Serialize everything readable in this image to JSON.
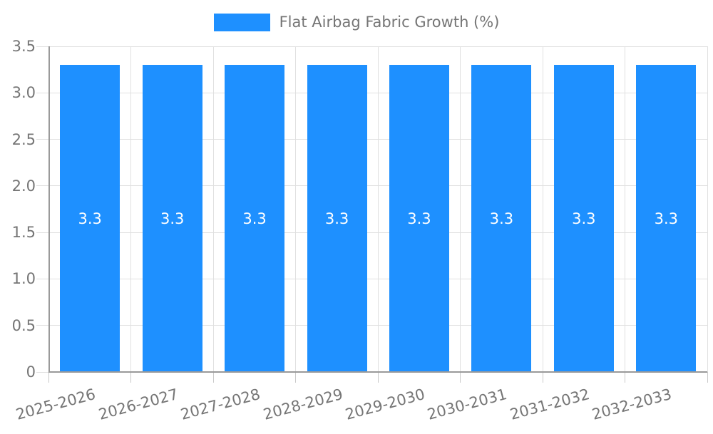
{
  "legend": {
    "label": "Flat Airbag Fabric Growth (%)"
  },
  "chart_data": {
    "type": "bar",
    "title": "",
    "series_name": "Flat Airbag Fabric Growth (%)",
    "categories": [
      "2025-2026",
      "2026-2027",
      "2027-2028",
      "2028-2029",
      "2029-2030",
      "2030-2031",
      "2031-2032",
      "2032-2033"
    ],
    "values": [
      3.3,
      3.3,
      3.3,
      3.3,
      3.3,
      3.3,
      3.3,
      3.3
    ],
    "value_labels": [
      "3.3",
      "3.3",
      "3.3",
      "3.3",
      "3.3",
      "3.3",
      "3.3",
      "3.3"
    ],
    "xlabel": "",
    "ylabel": "",
    "ylim": [
      0,
      3.5
    ],
    "ytick_labels": [
      "0",
      "0.5",
      "1.0",
      "1.5",
      "2.0",
      "2.5",
      "3.0",
      "3.5"
    ],
    "grid": true,
    "legend_position": "top-center",
    "x_tick_label_rotation_deg": -15
  },
  "colors": {
    "bar": "#1e90ff",
    "bar_value_label": "#ffffff",
    "axis_line": "#9a9a9a",
    "grid_line": "#e0e0e0",
    "x_tick_mark": "#c9c9c9",
    "tick_label": "#757575",
    "legend_label": "#757575",
    "background": "#ffffff"
  }
}
